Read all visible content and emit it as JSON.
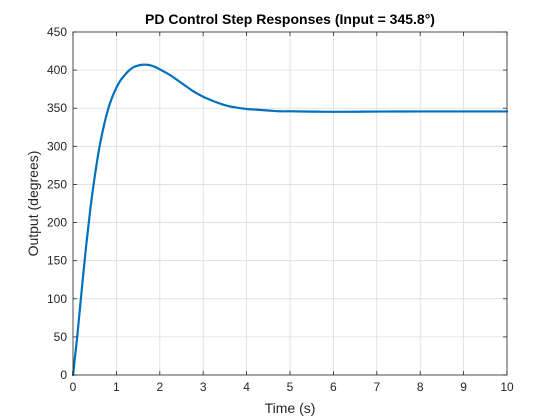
{
  "chart_data": {
    "type": "line",
    "title": "PD Control Step Responses (Input = 345.8°)",
    "xlabel": "Time (s)",
    "ylabel": "Output (degrees)",
    "xlim": [
      0,
      10
    ],
    "ylim": [
      0,
      450
    ],
    "xticks": [
      0,
      1,
      2,
      3,
      4,
      5,
      6,
      7,
      8,
      9,
      10
    ],
    "yticks": [
      0,
      50,
      100,
      150,
      200,
      250,
      300,
      350,
      400,
      450
    ],
    "xtick_labels": [
      "0",
      "1",
      "2",
      "3",
      "4",
      "5",
      "6",
      "7",
      "8",
      "9",
      "10"
    ],
    "ytick_labels": [
      "0",
      "50",
      "100",
      "150",
      "200",
      "250",
      "300",
      "350",
      "400",
      "450"
    ],
    "grid": true,
    "box": true,
    "series": [
      {
        "color": "#0072BD",
        "x": [
          0,
          0.1,
          0.2,
          0.3,
          0.4,
          0.5,
          0.6,
          0.7,
          0.8,
          0.9,
          1.0,
          1.1,
          1.2,
          1.3,
          1.4,
          1.5,
          1.6,
          1.7,
          1.8,
          1.9,
          2.0,
          2.25,
          2.5,
          2.75,
          3.0,
          3.25,
          3.5,
          3.75,
          4.0,
          4.25,
          4.5,
          4.75,
          5.0,
          5.5,
          6.0,
          6.5,
          7.0,
          7.5,
          8.0,
          8.5,
          9.0,
          9.5,
          10.0
        ],
        "y": [
          0,
          52,
          111,
          168,
          218,
          260,
          296,
          324,
          347,
          364,
          377,
          387,
          394,
          400,
          404,
          406,
          407,
          407,
          406,
          404,
          401,
          393,
          383,
          373,
          365,
          359,
          354,
          351,
          349,
          348,
          347,
          346,
          346,
          345.5,
          345.3,
          345.4,
          345.6,
          345.7,
          345.8,
          345.8,
          345.8,
          345.8,
          345.8
        ]
      }
    ]
  }
}
